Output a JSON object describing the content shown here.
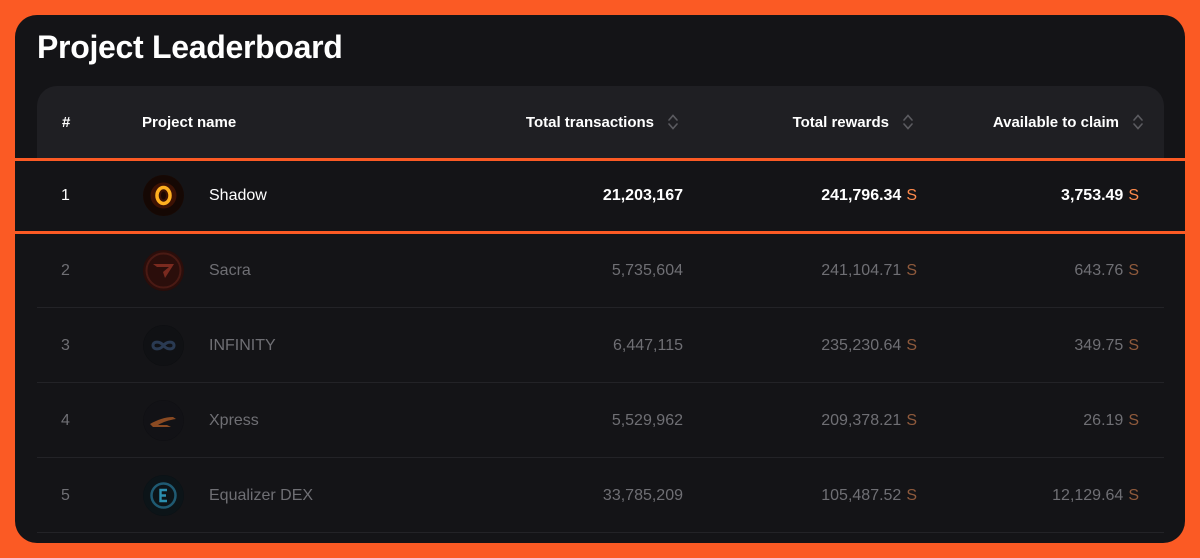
{
  "page": {
    "title": "Project Leaderboard"
  },
  "table": {
    "headers": {
      "rank": "#",
      "name": "Project name",
      "transactions": "Total transactions",
      "rewards": "Total rewards",
      "claim": "Available to claim"
    },
    "unit": "S",
    "rows": [
      {
        "rank": "1",
        "name": "Shadow",
        "icon": "shadow-logo-icon",
        "transactions": "21,203,167",
        "rewards": "241,796.34",
        "claim": "3,753.49",
        "highlighted": true
      },
      {
        "rank": "2",
        "name": "Sacra",
        "icon": "sacra-logo-icon",
        "transactions": "5,735,604",
        "rewards": "241,104.71",
        "claim": "643.76",
        "highlighted": false
      },
      {
        "rank": "3",
        "name": "INFINITY",
        "icon": "infinity-logo-icon",
        "transactions": "6,447,115",
        "rewards": "235,230.64",
        "claim": "349.75",
        "highlighted": false
      },
      {
        "rank": "4",
        "name": "Xpress",
        "icon": "xpress-logo-icon",
        "transactions": "5,529,962",
        "rewards": "209,378.21",
        "claim": "26.19",
        "highlighted": false
      },
      {
        "rank": "5",
        "name": "Equalizer DEX",
        "icon": "equalizer-logo-icon",
        "transactions": "33,785,209",
        "rewards": "105,487.52",
        "claim": "12,129.64",
        "highlighted": false
      }
    ]
  },
  "colors": {
    "accent": "#fb5a24",
    "panel": "#141417",
    "header": "#1f1f23"
  }
}
